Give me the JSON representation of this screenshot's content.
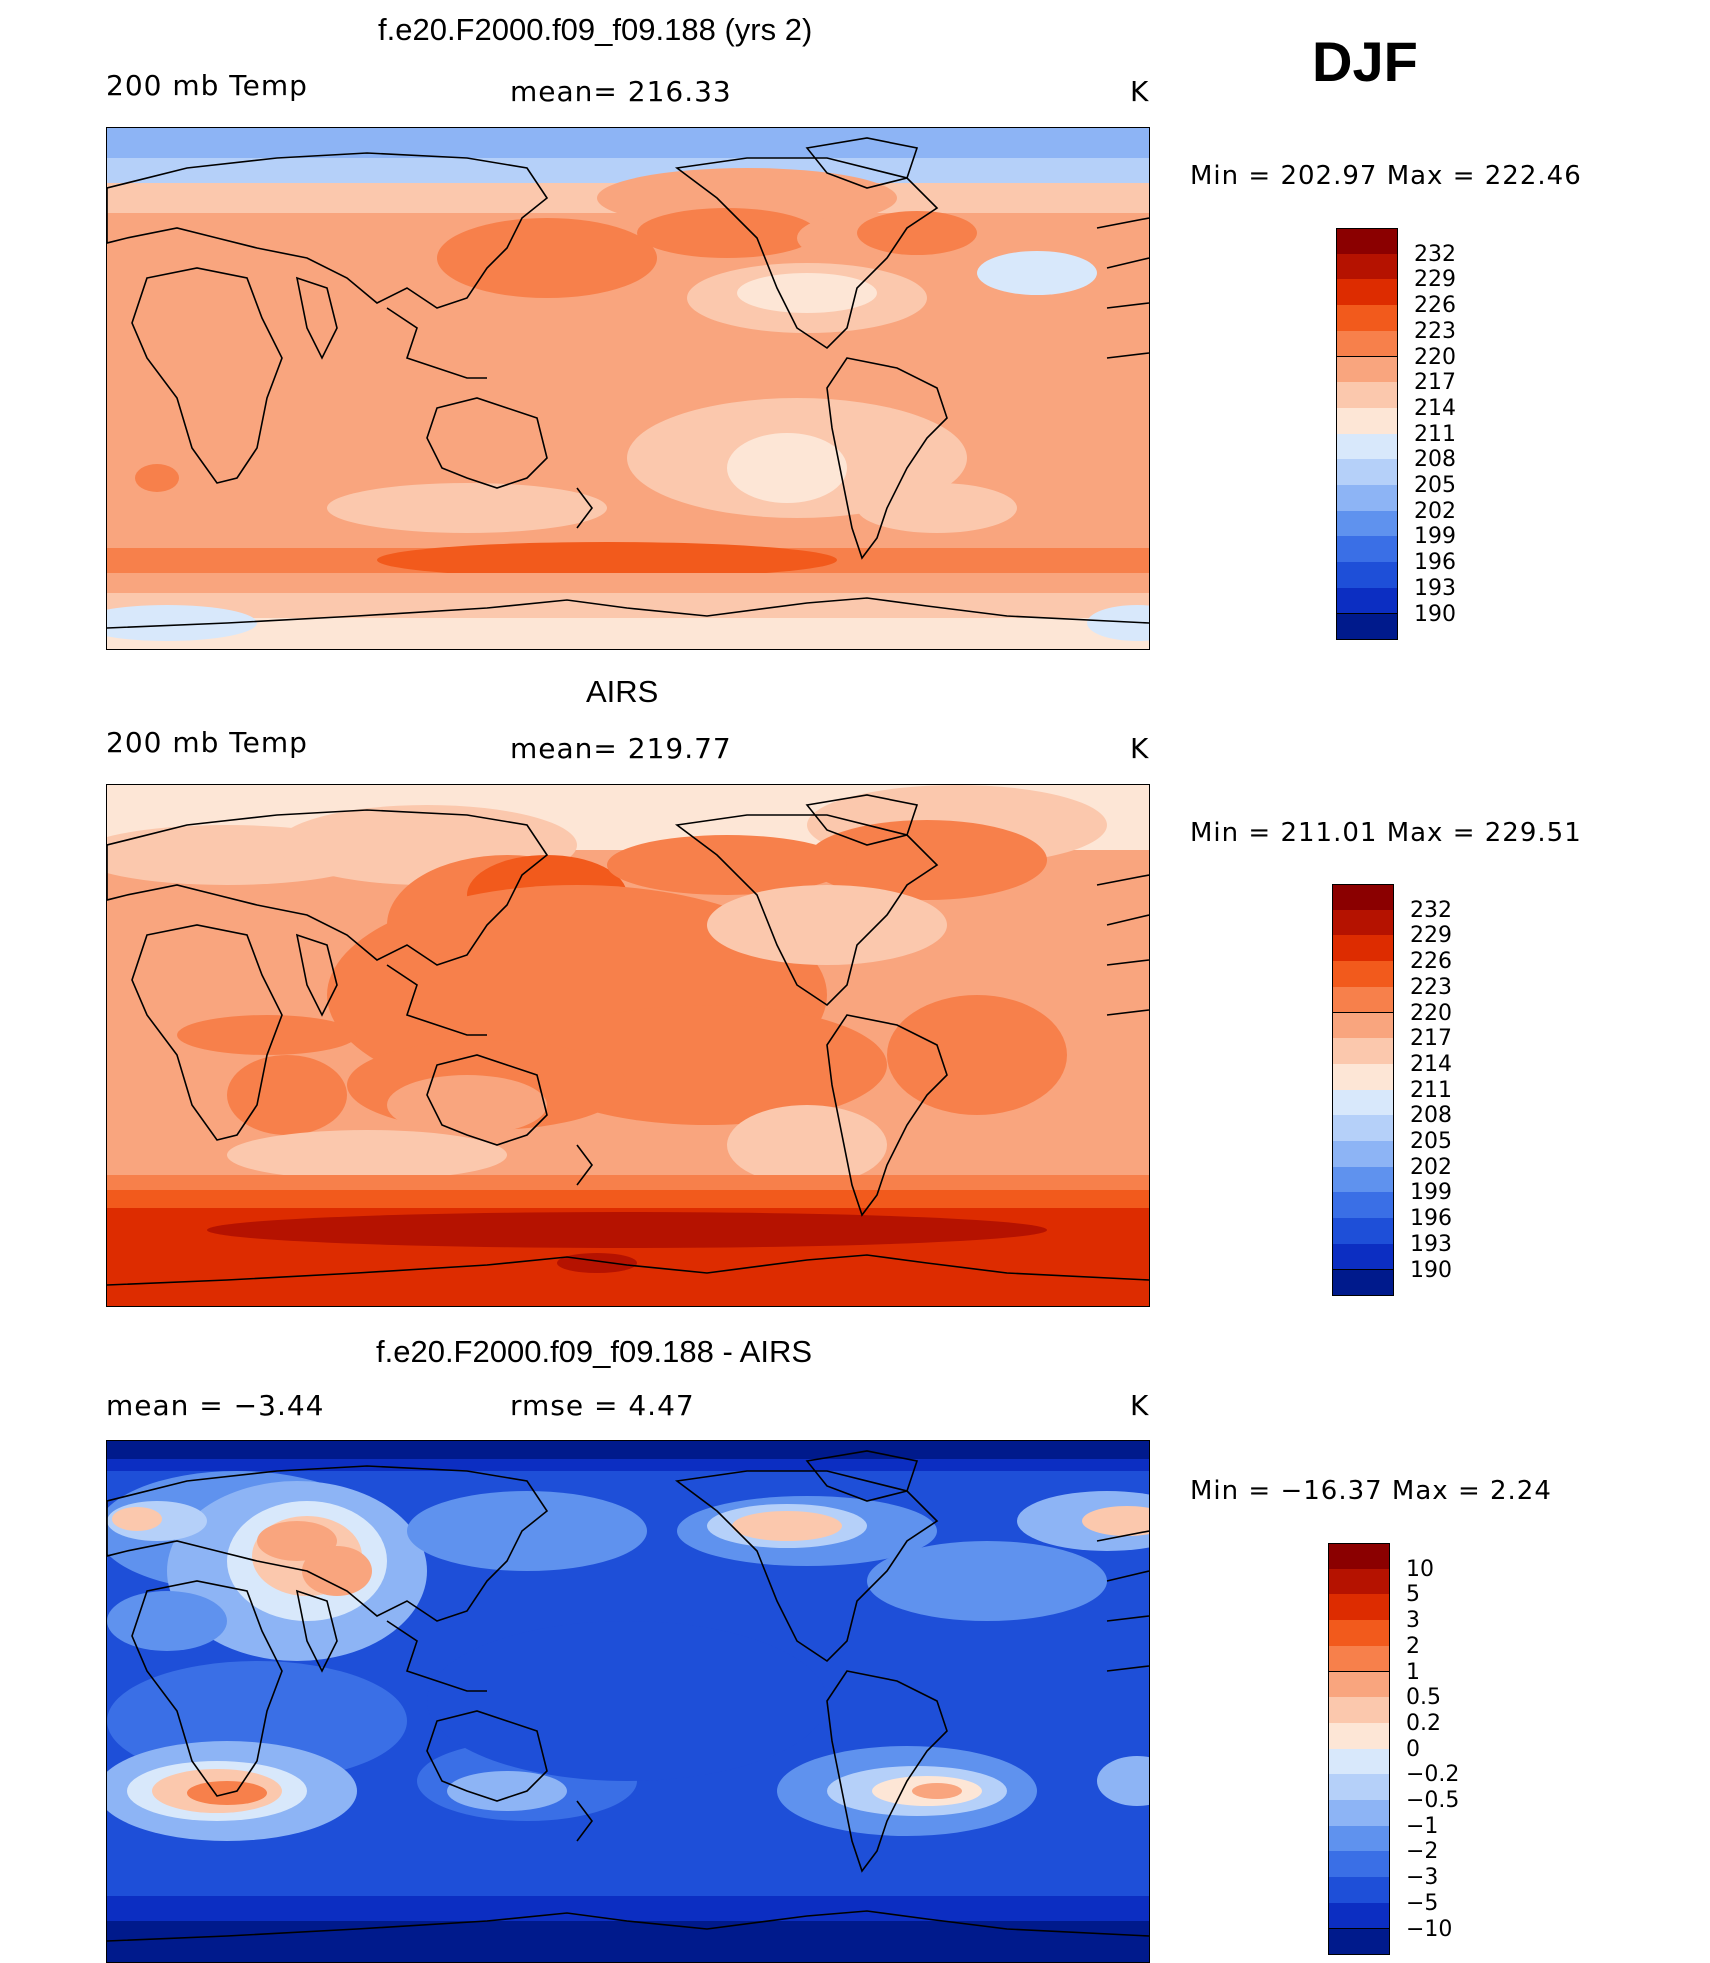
{
  "season": "DJF",
  "units": "K",
  "panels": [
    {
      "title": "f.e20.F2000.f09_f09.188 (yrs 2)",
      "left_label": "200 mb Temp",
      "center_label": "mean=  216.33",
      "right_label": "K",
      "minmax": "Min  =  202.97  Max  =  222.46",
      "colorbar_levels": [
        "232",
        "229",
        "226",
        "223",
        "220",
        "217",
        "214",
        "211",
        "208",
        "205",
        "202",
        "199",
        "196",
        "193",
        "190"
      ],
      "colorbar_colors": [
        "#8b0000",
        "#b51200",
        "#dd2c00",
        "#f25a1c",
        "#f7804b",
        "#f9a57e",
        "#fbc8ad",
        "#fde6d6",
        "#d8e8fb",
        "#b5d0f9",
        "#8db4f5",
        "#5f92ee",
        "#3a6fe6",
        "#1e4fd8",
        "#0c2ec2",
        "#001a8c"
      ],
      "field": "model"
    },
    {
      "title": "AIRS",
      "left_label": "200 mb Temp",
      "center_label": "mean=  219.77",
      "right_label": "K",
      "minmax": "Min  =  211.01  Max  =  229.51",
      "colorbar_levels": [
        "232",
        "229",
        "226",
        "223",
        "220",
        "217",
        "214",
        "211",
        "208",
        "205",
        "202",
        "199",
        "196",
        "193",
        "190"
      ],
      "colorbar_colors": [
        "#8b0000",
        "#b51200",
        "#dd2c00",
        "#f25a1c",
        "#f7804b",
        "#f9a57e",
        "#fbc8ad",
        "#fde6d6",
        "#d8e8fb",
        "#b5d0f9",
        "#8db4f5",
        "#5f92ee",
        "#3a6fe6",
        "#1e4fd8",
        "#0c2ec2",
        "#001a8c"
      ],
      "field": "obs"
    },
    {
      "title": "f.e20.F2000.f09_f09.188 - AIRS",
      "left_label": "mean  =    −3.44",
      "center_label": "rmse  =     4.47",
      "right_label": "K",
      "minmax": "Min  =  −16.37  Max  =      2.24",
      "colorbar_levels": [
        "10",
        "5",
        "3",
        "2",
        "1",
        "0.5",
        "0.2",
        "0",
        "−0.2",
        "−0.5",
        "−1",
        "−2",
        "−3",
        "−5",
        "−10"
      ],
      "colorbar_colors": [
        "#8b0000",
        "#b51200",
        "#dd2c00",
        "#f25a1c",
        "#f7804b",
        "#f9a57e",
        "#fbc8ad",
        "#fde6d6",
        "#d8e8fb",
        "#b5d0f9",
        "#8db4f5",
        "#5f92ee",
        "#3a6fe6",
        "#1e4fd8",
        "#0c2ec2",
        "#001a8c"
      ],
      "field": "diff"
    }
  ]
}
